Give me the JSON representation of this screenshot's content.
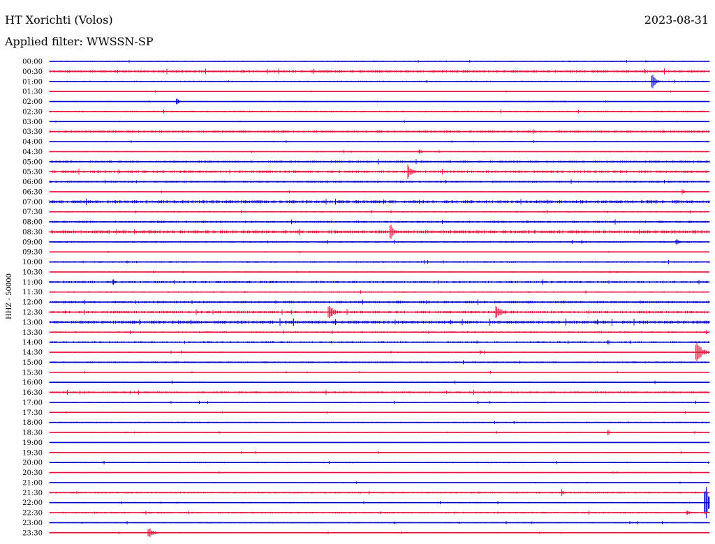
{
  "header": {
    "title": "HT Xorichti (Volos)",
    "date": "2023-08-31",
    "filter_text": "Applied filter: WWSSN-SP"
  },
  "chart_data": {
    "type": "line",
    "title": "HT Xorichti (Volos)",
    "ylabel": "HHZ - 50000",
    "row_labels": [
      "00:00",
      "00:30",
      "01:00",
      "01:30",
      "02:00",
      "02:30",
      "03:00",
      "03:30",
      "04:00",
      "04:30",
      "05:00",
      "05:30",
      "06:00",
      "06:30",
      "07:00",
      "07:30",
      "08:00",
      "08:30",
      "09:00",
      "09:30",
      "10:00",
      "10:30",
      "11:00",
      "11:30",
      "12:00",
      "12:30",
      "13:00",
      "13:30",
      "14:00",
      "14:30",
      "15:00",
      "15:30",
      "16:00",
      "16:30",
      "17:00",
      "17:30",
      "18:00",
      "18:30",
      "19:00",
      "19:30",
      "20:00",
      "20:30",
      "21:00",
      "21:30",
      "22:00",
      "22:30",
      "23:00",
      "23:30"
    ],
    "colors": {
      "even": "#0000cc",
      "odd": "#e8103c"
    },
    "row_minutes": 30,
    "noise": [
      0.8,
      1.8,
      1.0,
      0.6,
      0.9,
      1.2,
      0.6,
      1.6,
      0.8,
      1.0,
      1.6,
      1.8,
      1.4,
      0.8,
      2.2,
      1.0,
      1.6,
      2.2,
      1.2,
      0.6,
      1.2,
      0.8,
      1.6,
      1.0,
      1.6,
      1.8,
      2.2,
      1.2,
      1.4,
      1.0,
      1.2,
      0.7,
      1.0,
      1.4,
      0.9,
      0.8,
      1.0,
      0.8,
      0.7,
      0.8,
      1.0,
      0.7,
      0.7,
      1.2,
      0.9,
      1.2,
      1.0,
      0.8
    ],
    "events": [
      {
        "row": "00:00",
        "minute": 27.1,
        "amplitude": 2,
        "duration": 0.4
      },
      {
        "row": "01:00",
        "minute": 27.4,
        "amplitude": 11,
        "duration": 0.5
      },
      {
        "row": "02:00",
        "minute": 5.8,
        "amplitude": 5,
        "duration": 0.3
      },
      {
        "row": "04:30",
        "minute": 16.8,
        "amplitude": 3,
        "duration": 0.5
      },
      {
        "row": "05:30",
        "minute": 16.3,
        "amplitude": 11,
        "duration": 0.6
      },
      {
        "row": "06:30",
        "minute": 28.8,
        "amplitude": 4,
        "duration": 0.3
      },
      {
        "row": "08:30",
        "minute": 15.5,
        "amplitude": 15,
        "duration": 0.4
      },
      {
        "row": "09:00",
        "minute": 28.5,
        "amplitude": 5,
        "duration": 0.5
      },
      {
        "row": "11:00",
        "minute": 2.9,
        "amplitude": 5,
        "duration": 0.3
      },
      {
        "row": "12:00",
        "minute": 15.8,
        "amplitude": 3,
        "duration": 1.2
      },
      {
        "row": "12:30",
        "minute": 12.7,
        "amplitude": 12,
        "duration": 0.7
      },
      {
        "row": "12:30",
        "minute": 20.3,
        "amplitude": 13,
        "duration": 0.7
      },
      {
        "row": "14:00",
        "minute": 25.4,
        "amplitude": 4,
        "duration": 0.3
      },
      {
        "row": "14:30",
        "minute": 29.4,
        "amplitude": 17,
        "duration": 0.8
      },
      {
        "row": "14:30",
        "minute": 19.6,
        "amplitude": 3,
        "duration": 0.3
      },
      {
        "row": "18:30",
        "minute": 25.4,
        "amplitude": 4,
        "duration": 0.3
      },
      {
        "row": "21:30",
        "minute": 23.3,
        "amplitude": 5,
        "duration": 0.3
      },
      {
        "row": "22:00",
        "minute": 29.8,
        "amplitude": 25,
        "duration": 0.9
      },
      {
        "row": "22:30",
        "minute": 29.0,
        "amplitude": 5,
        "duration": 0.4
      },
      {
        "row": "23:00",
        "minute": 15.7,
        "amplitude": 2,
        "duration": 0.3
      },
      {
        "row": "23:30",
        "minute": 4.5,
        "amplitude": 7,
        "duration": 0.8
      }
    ]
  }
}
